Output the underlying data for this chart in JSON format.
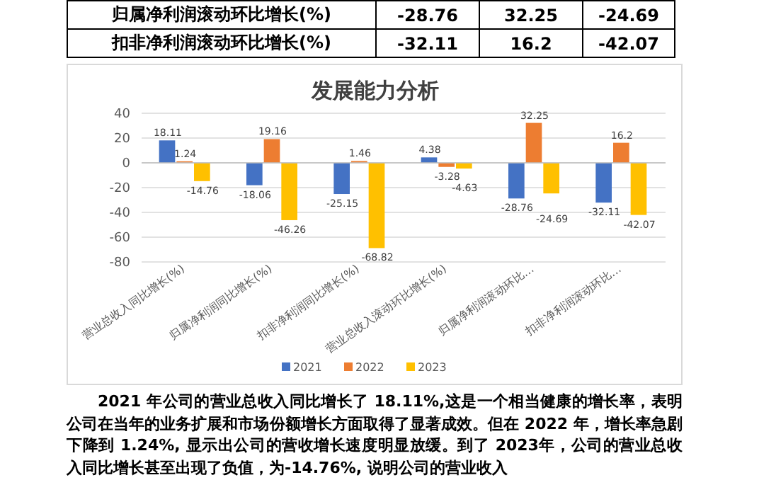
{
  "chart_data": {
    "type": "bar",
    "title": "发展能力分析",
    "categories": [
      "营业总收入同比增长(%)",
      "归属净利润同比增长(%)",
      "扣非净利润同比增长(%)",
      "营业总收入滚动环比增长(%)",
      "归属净利润滚动环比…",
      "扣非净利润滚动环比…"
    ],
    "series": [
      {
        "name": "2021",
        "color": "#4472c4",
        "values": [
          18.11,
          -18.06,
          -25.15,
          4.38,
          -28.76,
          -32.11
        ]
      },
      {
        "name": "2022",
        "color": "#ed7d31",
        "values": [
          1.24,
          19.16,
          1.46,
          -3.28,
          32.25,
          16.2
        ]
      },
      {
        "name": "2023",
        "color": "#ffc000",
        "values": [
          -14.76,
          -46.26,
          -68.82,
          -4.63,
          -24.69,
          -42.07
        ]
      }
    ],
    "ylim": [
      -80,
      40
    ],
    "yticks": [
      -80,
      -60,
      -40,
      -20,
      0,
      20,
      40
    ],
    "grid": "y",
    "legend": "bottom",
    "data_labels": true,
    "annotations": [
      "归属净利润滚动环比增长(%)",
      "-28.76",
      "32.25",
      "-24.69",
      "扣非净利润滚动环比增长(%)",
      "-32.11",
      "16.2",
      "-42.07",
      "2021 年公司的营业总收入同比增长了 18.11%,这是一个相当健康的增长率，表明公司在当年的业务扩展和市场份额增长方面取得了显著成效。但在 2022 年，增长率急剧下降到 1.24%, 显示出公司的营收增长速度明显放缓。到了 2023年，公司的营业总收入同比增长甚至出现了负值，为-14.76%, 说明公司的营业收入"
    ]
  }
}
